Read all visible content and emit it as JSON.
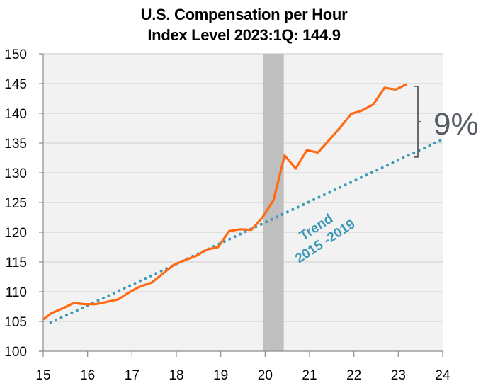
{
  "chart_data": {
    "type": "line",
    "title": "U.S. Compensation per Hour",
    "subtitle": "Index Level  2023:1Q:  144.9",
    "xlabel": "",
    "ylabel": "",
    "xlim": [
      15,
      24
    ],
    "ylim": [
      100,
      150
    ],
    "x_ticks": [
      15,
      16,
      17,
      18,
      19,
      20,
      21,
      22,
      23,
      24
    ],
    "x_tick_labels": [
      "15",
      "16",
      "17",
      "18",
      "19",
      "20",
      "21",
      "22",
      "23",
      "24"
    ],
    "y_ticks": [
      100,
      105,
      110,
      115,
      120,
      125,
      130,
      135,
      140,
      145,
      150
    ],
    "y_tick_labels": [
      "100",
      "105",
      "110",
      "115",
      "120",
      "125",
      "130",
      "135",
      "140",
      "145",
      "150"
    ],
    "grid": "horizontal",
    "colors": {
      "series": "#ff6a13",
      "trend": "#3b98b6",
      "recession": "#bfbfbf",
      "plot_bg": "#f2f2f2",
      "grid": "#d9d9d9",
      "annotation": "#575d63"
    },
    "recession": {
      "start": 19.95,
      "end": 20.42
    },
    "series": [
      {
        "name": "Compensation per Hour",
        "style": "solid",
        "x": [
          14.94,
          15.19,
          15.44,
          15.69,
          15.94,
          16.19,
          16.44,
          16.69,
          16.94,
          17.19,
          17.44,
          17.69,
          17.94,
          18.19,
          18.44,
          18.69,
          18.94,
          19.19,
          19.44,
          19.69,
          19.94,
          20.19,
          20.44,
          20.69,
          20.94,
          21.19,
          21.44,
          21.69,
          21.94,
          22.19,
          22.44,
          22.69,
          22.94,
          23.19
        ],
        "values": [
          105.0,
          106.4,
          107.2,
          108.1,
          107.9,
          107.9,
          108.3,
          108.7,
          109.9,
          110.9,
          111.5,
          113.0,
          114.5,
          115.3,
          116.0,
          117.1,
          117.5,
          120.2,
          120.5,
          120.4,
          122.5,
          125.4,
          132.9,
          130.7,
          133.8,
          133.4,
          135.5,
          137.6,
          139.9,
          140.5,
          141.5,
          144.3,
          144.0,
          144.9
        ]
      },
      {
        "name": "Trend 2015 -2019",
        "style": "dotted",
        "x": [
          15.17,
          24.0
        ],
        "values": [
          104.8,
          135.6
        ]
      }
    ],
    "annotations": [
      {
        "text": "Trend",
        "type": "label",
        "series": "trend"
      },
      {
        "text": "2015 -2019",
        "type": "label",
        "series": "trend"
      },
      {
        "text": "9%",
        "type": "bracket",
        "from": 144.3,
        "to": 133.0,
        "x": 23.45
      }
    ]
  }
}
